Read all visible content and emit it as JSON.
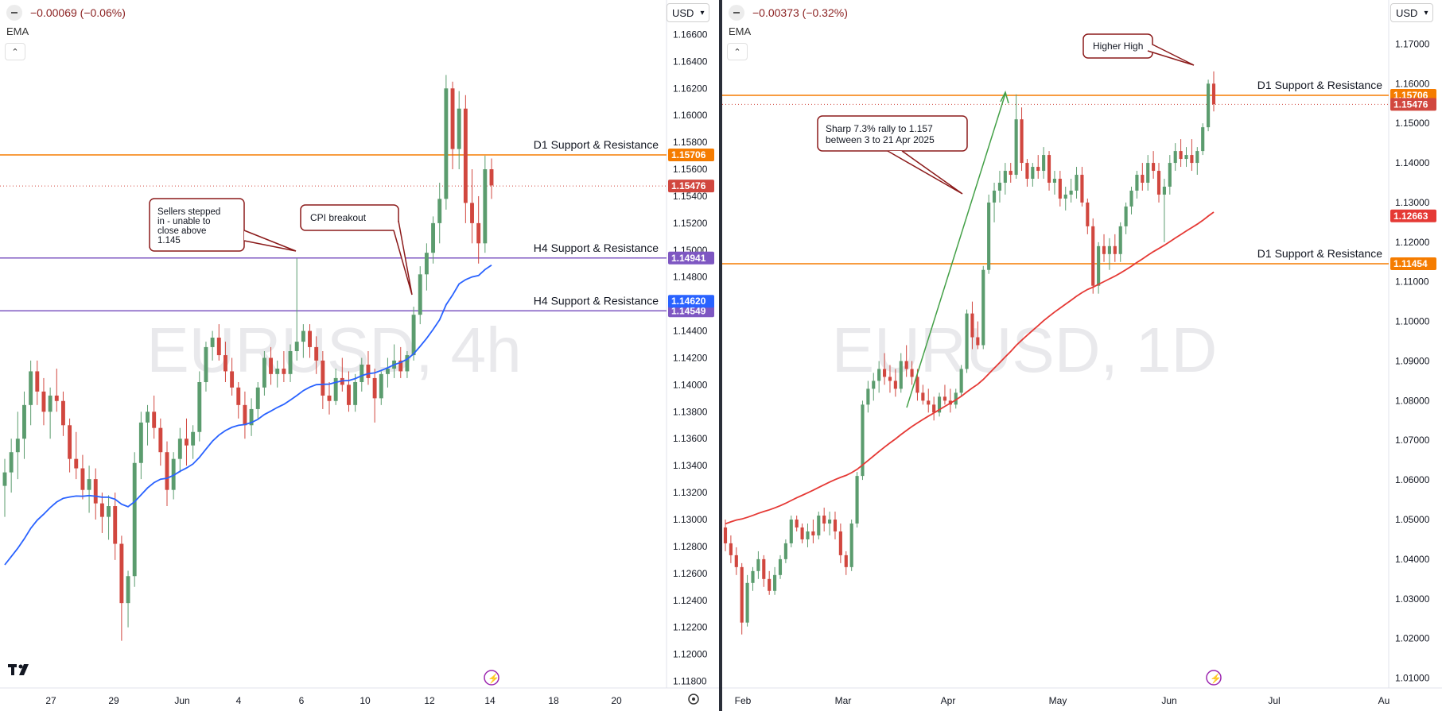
{
  "left_panel": {
    "change_text": "−0.00069 (−0.06%)",
    "indicator": "EMA",
    "currency": "USD",
    "watermark": "EURUSD, 4h",
    "colors": {
      "up": "#5b9c6e",
      "down": "#d1473f",
      "ema": "#2962ff",
      "d1_line": "#f57c00",
      "h4_line": "#7e57c2"
    }
  },
  "right_panel": {
    "change_text": "−0.00373 (−0.32%)",
    "indicator": "EMA",
    "currency": "USD",
    "watermark": "EURUSD, 1D",
    "colors": {
      "up": "#5b9c6e",
      "down": "#d1473f",
      "ema": "#e53935",
      "d1_line": "#f57c00"
    }
  },
  "chart_data": [
    {
      "type": "candlestick",
      "symbol": "EURUSD",
      "timeframe": "4h",
      "y_ticks": [
        "1.16600",
        "1.16400",
        "1.16200",
        "1.16000",
        "1.15800",
        "1.15600",
        "1.15400",
        "1.15200",
        "1.15000",
        "1.14800",
        "1.14600",
        "1.14400",
        "1.14200",
        "1.14000",
        "1.13800",
        "1.13600",
        "1.13400",
        "1.13200",
        "1.13000",
        "1.12800",
        "1.12600",
        "1.12400",
        "1.12200",
        "1.12000",
        "1.11800"
      ],
      "ylim": [
        1.1175,
        1.1675
      ],
      "x_ticks": [
        "27",
        "29",
        "Jun",
        "4",
        "6",
        "10",
        "12",
        "14",
        "18",
        "20"
      ],
      "horizontal_levels": [
        {
          "label": "D1 Support & Resistance",
          "value": 1.15706,
          "tag": "1.15706",
          "color": "#f57c00"
        },
        {
          "label": "H4 Support & Resistance",
          "value": 1.14941,
          "tag": "1.14941",
          "color": "#7e57c2"
        },
        {
          "label": "H4 Support & Resistance",
          "value": 1.14549,
          "tag": "1.14549",
          "color": "#7e57c2"
        }
      ],
      "price_tags": [
        {
          "value": 1.15476,
          "text": "1.15476",
          "color": "#d1473f"
        },
        {
          "value": 1.1462,
          "text": "1.14620",
          "color": "#2962ff"
        }
      ],
      "annotations": [
        {
          "text": "Sellers stepped in - unable to close above 1.145"
        },
        {
          "text": "CPI breakout"
        }
      ],
      "ohlc": [
        [
          1.1325,
          1.1345,
          1.1302,
          1.1335
        ],
        [
          1.1335,
          1.136,
          1.132,
          1.135
        ],
        [
          1.135,
          1.138,
          1.133,
          1.136
        ],
        [
          1.136,
          1.1395,
          1.1345,
          1.1385
        ],
        [
          1.1385,
          1.1418,
          1.137,
          1.141
        ],
        [
          1.141,
          1.1418,
          1.1385,
          1.1395
        ],
        [
          1.1395,
          1.1405,
          1.137,
          1.138
        ],
        [
          1.138,
          1.1398,
          1.136,
          1.1392
        ],
        [
          1.1392,
          1.1412,
          1.138,
          1.1388
        ],
        [
          1.1388,
          1.1395,
          1.1362,
          1.137
        ],
        [
          1.137,
          1.1375,
          1.1335,
          1.1345
        ],
        [
          1.1345,
          1.1365,
          1.133,
          1.1338
        ],
        [
          1.1338,
          1.1348,
          1.1315,
          1.1322
        ],
        [
          1.1322,
          1.134,
          1.1305,
          1.133
        ],
        [
          1.133,
          1.1338,
          1.13,
          1.1312
        ],
        [
          1.1312,
          1.132,
          1.129,
          1.1302
        ],
        [
          1.1302,
          1.1318,
          1.1285,
          1.131
        ],
        [
          1.131,
          1.132,
          1.127,
          1.1282
        ],
        [
          1.1282,
          1.1288,
          1.121,
          1.1238
        ],
        [
          1.1238,
          1.1262,
          1.122,
          1.1258
        ],
        [
          1.1258,
          1.135,
          1.125,
          1.1342
        ],
        [
          1.1342,
          1.138,
          1.133,
          1.1372
        ],
        [
          1.1372,
          1.1385,
          1.1355,
          1.138
        ],
        [
          1.138,
          1.1392,
          1.136,
          1.1368
        ],
        [
          1.1368,
          1.1375,
          1.134,
          1.135
        ],
        [
          1.135,
          1.1358,
          1.131,
          1.1322
        ],
        [
          1.1322,
          1.135,
          1.1315,
          1.1345
        ],
        [
          1.1345,
          1.1368,
          1.1335,
          1.136
        ],
        [
          1.136,
          1.1375,
          1.134,
          1.1355
        ],
        [
          1.1355,
          1.137,
          1.1345,
          1.1365
        ],
        [
          1.1365,
          1.141,
          1.1358,
          1.1402
        ],
        [
          1.1402,
          1.1432,
          1.1395,
          1.1428
        ],
        [
          1.1428,
          1.144,
          1.1418,
          1.1435
        ],
        [
          1.1435,
          1.1445,
          1.1418,
          1.1422
        ],
        [
          1.1422,
          1.1432,
          1.1402,
          1.141
        ],
        [
          1.141,
          1.142,
          1.1392,
          1.1398
        ],
        [
          1.1398,
          1.1402,
          1.1375,
          1.1385
        ],
        [
          1.1385,
          1.1395,
          1.136,
          1.137
        ],
        [
          1.137,
          1.139,
          1.1362,
          1.1382
        ],
        [
          1.1382,
          1.1402,
          1.1375,
          1.1398
        ],
        [
          1.1398,
          1.1425,
          1.1392,
          1.142
        ],
        [
          1.142,
          1.1428,
          1.14,
          1.1408
        ],
        [
          1.1408,
          1.1418,
          1.1398,
          1.1412
        ],
        [
          1.1412,
          1.1425,
          1.1402,
          1.1408
        ],
        [
          1.1408,
          1.143,
          1.1402,
          1.1425
        ],
        [
          1.1425,
          1.1494,
          1.1418,
          1.1432
        ],
        [
          1.1432,
          1.1445,
          1.142,
          1.144
        ],
        [
          1.144,
          1.1445,
          1.142,
          1.1428
        ],
        [
          1.1428,
          1.1436,
          1.1408,
          1.1418
        ],
        [
          1.1418,
          1.1425,
          1.1382,
          1.1392
        ],
        [
          1.1392,
          1.1402,
          1.1378,
          1.1388
        ],
        [
          1.1388,
          1.1412,
          1.1385,
          1.1405
        ],
        [
          1.1405,
          1.142,
          1.1395,
          1.14
        ],
        [
          1.14,
          1.141,
          1.138,
          1.1385
        ],
        [
          1.1385,
          1.1408,
          1.138,
          1.1402
        ],
        [
          1.1402,
          1.142,
          1.1395,
          1.1415
        ],
        [
          1.1415,
          1.1425,
          1.14,
          1.1405
        ],
        [
          1.1405,
          1.1412,
          1.1372,
          1.139
        ],
        [
          1.139,
          1.141,
          1.1385,
          1.1408
        ],
        [
          1.1408,
          1.142,
          1.1398,
          1.1412
        ],
        [
          1.1412,
          1.143,
          1.1405,
          1.1418
        ],
        [
          1.1418,
          1.1428,
          1.1405,
          1.141
        ],
        [
          1.141,
          1.1425,
          1.1405,
          1.1422
        ],
        [
          1.1422,
          1.1458,
          1.1418,
          1.1452
        ],
        [
          1.1452,
          1.1488,
          1.1445,
          1.1482
        ],
        [
          1.1482,
          1.1505,
          1.147,
          1.1498
        ],
        [
          1.1498,
          1.1525,
          1.149,
          1.152
        ],
        [
          1.152,
          1.155,
          1.1505,
          1.1538
        ],
        [
          1.1538,
          1.163,
          1.153,
          1.162
        ],
        [
          1.162,
          1.1625,
          1.156,
          1.1575
        ],
        [
          1.1575,
          1.1618,
          1.156,
          1.1605
        ],
        [
          1.1605,
          1.1615,
          1.152,
          1.1535
        ],
        [
          1.1535,
          1.156,
          1.1505,
          1.152
        ],
        [
          1.152,
          1.154,
          1.149,
          1.1505
        ],
        [
          1.1505,
          1.157,
          1.1498,
          1.156
        ],
        [
          1.156,
          1.1568,
          1.1538,
          1.1548
        ]
      ],
      "ema_start": 1.1262,
      "ema_end": 1.1462
    },
    {
      "type": "candlestick",
      "symbol": "EURUSD",
      "timeframe": "1D",
      "y_ticks": [
        "1.17000",
        "1.16000",
        "1.15000",
        "1.14000",
        "1.13000",
        "1.12000",
        "1.11000",
        "1.10000",
        "1.09000",
        "1.08000",
        "1.07000",
        "1.06000",
        "1.05000",
        "1.04000",
        "1.03000",
        "1.02000",
        "1.01000"
      ],
      "ylim": [
        1.0075,
        1.1775
      ],
      "x_ticks": [
        "Feb",
        "Mar",
        "Apr",
        "May",
        "Jun",
        "Jul",
        "Au"
      ],
      "horizontal_levels": [
        {
          "label": "D1 Support & Resistance",
          "value": 1.15706,
          "tag": "1.15706",
          "color": "#f57c00"
        },
        {
          "label": "D1 Support & Resistance",
          "value": 1.11454,
          "tag": "1.11454",
          "color": "#f57c00"
        }
      ],
      "price_tags": [
        {
          "value": 1.15476,
          "text": "1.15476",
          "color": "#d1473f"
        },
        {
          "value": 1.12663,
          "text": "1.12663",
          "color": "#e53935"
        }
      ],
      "annotations": [
        {
          "text": "Higher High"
        },
        {
          "text": "Sharp 7.3% rally to 1.157 between 3 to 21 Apr 2025"
        }
      ],
      "ohlc": [
        [
          1.048,
          1.05,
          1.042,
          1.044
        ],
        [
          1.044,
          1.046,
          1.039,
          1.041
        ],
        [
          1.041,
          1.043,
          1.036,
          1.038
        ],
        [
          1.038,
          1.039,
          1.021,
          1.024
        ],
        [
          1.024,
          1.036,
          1.023,
          1.034
        ],
        [
          1.034,
          1.038,
          1.032,
          1.037
        ],
        [
          1.037,
          1.042,
          1.035,
          1.04
        ],
        [
          1.04,
          1.041,
          1.033,
          1.035
        ],
        [
          1.035,
          1.037,
          1.031,
          1.032
        ],
        [
          1.032,
          1.038,
          1.031,
          1.036
        ],
        [
          1.036,
          1.041,
          1.035,
          1.04
        ],
        [
          1.04,
          1.045,
          1.039,
          1.044
        ],
        [
          1.044,
          1.051,
          1.043,
          1.05
        ],
        [
          1.05,
          1.051,
          1.047,
          1.048
        ],
        [
          1.048,
          1.049,
          1.044,
          1.045
        ],
        [
          1.045,
          1.049,
          1.043,
          1.047
        ],
        [
          1.047,
          1.05,
          1.044,
          1.046
        ],
        [
          1.046,
          1.052,
          1.045,
          1.051
        ],
        [
          1.051,
          1.053,
          1.047,
          1.049
        ],
        [
          1.049,
          1.052,
          1.046,
          1.05
        ],
        [
          1.05,
          1.052,
          1.045,
          1.047
        ],
        [
          1.047,
          1.049,
          1.039,
          1.041
        ],
        [
          1.041,
          1.042,
          1.036,
          1.038
        ],
        [
          1.038,
          1.05,
          1.037,
          1.049
        ],
        [
          1.049,
          1.062,
          1.048,
          1.061
        ],
        [
          1.061,
          1.08,
          1.06,
          1.079
        ],
        [
          1.079,
          1.085,
          1.077,
          1.083
        ],
        [
          1.083,
          1.087,
          1.08,
          1.085
        ],
        [
          1.085,
          1.09,
          1.082,
          1.088
        ],
        [
          1.088,
          1.092,
          1.084,
          1.086
        ],
        [
          1.086,
          1.089,
          1.082,
          1.085
        ],
        [
          1.085,
          1.088,
          1.081,
          1.083
        ],
        [
          1.083,
          1.092,
          1.082,
          1.09
        ],
        [
          1.09,
          1.094,
          1.086,
          1.088
        ],
        [
          1.088,
          1.09,
          1.084,
          1.086
        ],
        [
          1.086,
          1.088,
          1.08,
          1.082
        ],
        [
          1.082,
          1.084,
          1.079,
          1.08
        ],
        [
          1.08,
          1.083,
          1.077,
          1.079
        ],
        [
          1.079,
          1.081,
          1.075,
          1.077
        ],
        [
          1.077,
          1.082,
          1.076,
          1.081
        ],
        [
          1.081,
          1.084,
          1.079,
          1.08
        ],
        [
          1.08,
          1.083,
          1.077,
          1.079
        ],
        [
          1.079,
          1.083,
          1.078,
          1.082
        ],
        [
          1.082,
          1.089,
          1.081,
          1.088
        ],
        [
          1.088,
          1.103,
          1.087,
          1.102
        ],
        [
          1.102,
          1.105,
          1.093,
          1.096
        ],
        [
          1.096,
          1.1,
          1.093,
          1.094
        ],
        [
          1.094,
          1.114,
          1.093,
          1.113
        ],
        [
          1.113,
          1.132,
          1.112,
          1.13
        ],
        [
          1.13,
          1.135,
          1.125,
          1.133
        ],
        [
          1.133,
          1.138,
          1.13,
          1.135
        ],
        [
          1.135,
          1.14,
          1.132,
          1.138
        ],
        [
          1.138,
          1.14,
          1.135,
          1.137
        ],
        [
          1.137,
          1.1573,
          1.136,
          1.151
        ],
        [
          1.151,
          1.154,
          1.138,
          1.14
        ],
        [
          1.14,
          1.141,
          1.134,
          1.136
        ],
        [
          1.136,
          1.14,
          1.134,
          1.139
        ],
        [
          1.139,
          1.142,
          1.136,
          1.138
        ],
        [
          1.138,
          1.144,
          1.136,
          1.142
        ],
        [
          1.142,
          1.143,
          1.133,
          1.135
        ],
        [
          1.135,
          1.138,
          1.132,
          1.136
        ],
        [
          1.136,
          1.138,
          1.129,
          1.131
        ],
        [
          1.131,
          1.134,
          1.128,
          1.132
        ],
        [
          1.132,
          1.136,
          1.13,
          1.133
        ],
        [
          1.133,
          1.139,
          1.131,
          1.137
        ],
        [
          1.137,
          1.139,
          1.129,
          1.13
        ],
        [
          1.13,
          1.131,
          1.122,
          1.124
        ],
        [
          1.124,
          1.126,
          1.107,
          1.109
        ],
        [
          1.109,
          1.12,
          1.107,
          1.119
        ],
        [
          1.119,
          1.122,
          1.115,
          1.117
        ],
        [
          1.117,
          1.121,
          1.113,
          1.119
        ],
        [
          1.119,
          1.122,
          1.115,
          1.117
        ],
        [
          1.117,
          1.125,
          1.115,
          1.124
        ],
        [
          1.124,
          1.13,
          1.122,
          1.129
        ],
        [
          1.129,
          1.134,
          1.127,
          1.133
        ],
        [
          1.133,
          1.138,
          1.131,
          1.137
        ],
        [
          1.137,
          1.14,
          1.133,
          1.135
        ],
        [
          1.135,
          1.142,
          1.133,
          1.14
        ],
        [
          1.14,
          1.143,
          1.136,
          1.138
        ],
        [
          1.138,
          1.14,
          1.13,
          1.132
        ],
        [
          1.132,
          1.136,
          1.12,
          1.134
        ],
        [
          1.134,
          1.142,
          1.132,
          1.14
        ],
        [
          1.14,
          1.145,
          1.138,
          1.143
        ],
        [
          1.143,
          1.146,
          1.139,
          1.141
        ],
        [
          1.141,
          1.144,
          1.139,
          1.142
        ],
        [
          1.142,
          1.146,
          1.138,
          1.14
        ],
        [
          1.14,
          1.144,
          1.137,
          1.143
        ],
        [
          1.143,
          1.15,
          1.142,
          1.149
        ],
        [
          1.149,
          1.161,
          1.148,
          1.16
        ],
        [
          1.16,
          1.1631,
          1.153,
          1.1548
        ]
      ],
      "ema_start": 1.049,
      "ema_end": 1.1266
    }
  ]
}
